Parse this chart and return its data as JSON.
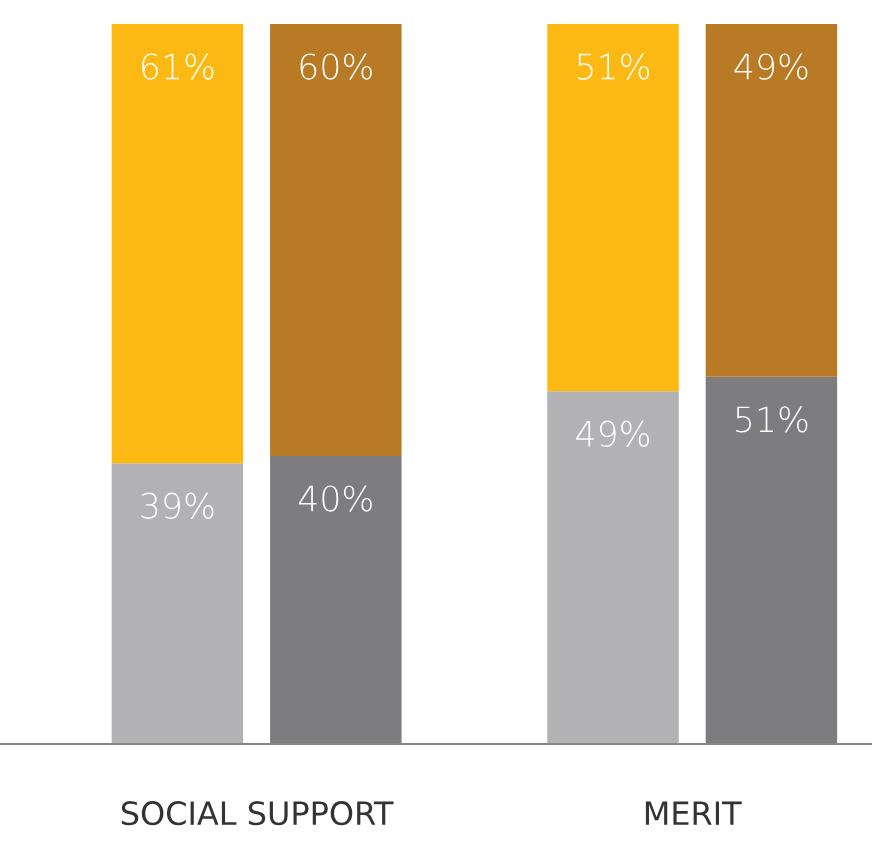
{
  "chart_data": {
    "type": "bar",
    "stacked": true,
    "categories": [
      null,
      null,
      null,
      null
    ],
    "series": [
      {
        "colors": [
          "#b2b2b4",
          "#7d7d80",
          "#b2b2b4",
          "#7d7d80"
        ],
        "values": [
          39,
          40,
          49,
          51
        ],
        "value_labels": [
          "39%",
          "40%",
          "49%",
          "51%"
        ]
      },
      {
        "colors": [
          "#fdb913",
          "#b87a24",
          "#fdb913",
          "#b87a24"
        ],
        "values": [
          61,
          60,
          51,
          49
        ],
        "value_labels": [
          "61%",
          "60%",
          "51%",
          "49%"
        ]
      }
    ],
    "annotations": [
      "SOCIAL SUPPORT",
      "MERIT"
    ]
  }
}
